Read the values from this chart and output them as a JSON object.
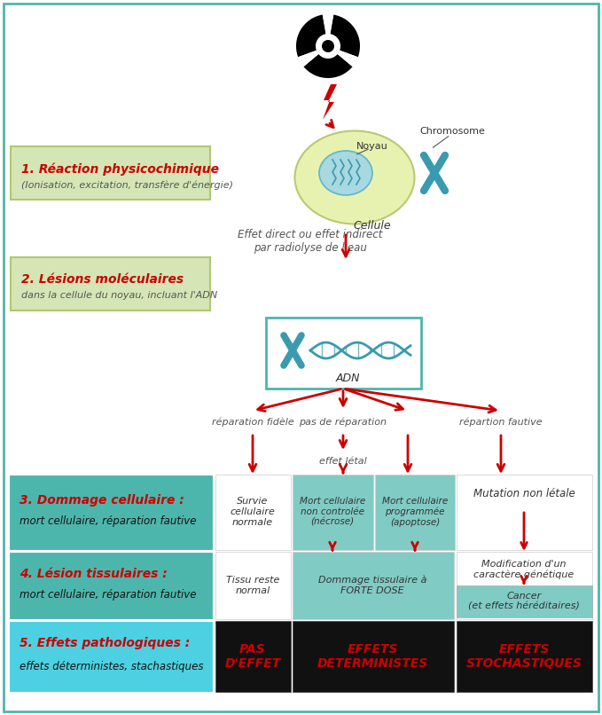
{
  "bg_color": "#ffffff",
  "border_color": "#4db6ac",
  "red": "#cc0000",
  "green_bg": "#d4e6b5",
  "teal_bg": "#4db6ac",
  "light_teal": "#80cbc4",
  "cyan_bg": "#4dd0e1",
  "black_bg": "#111111",
  "red_text": "#cc0000",
  "step1_title": "1. Réaction physicochimique",
  "step1_sub": "(Ionisation, excitation, transfère d'énergie)",
  "step2_title": "2. Lésions moléculaires",
  "step2_sub": "dans la cellule du noyau, incluant l'ADN",
  "step3_title": "3. Dommage cellulaire :",
  "step3_sub": "mort cellulaire, réparation fautive",
  "step4_title": "4. Lésion tissulaires :",
  "step4_sub": "mort cellulaire, réparation fautive",
  "step5_title": "5. Effets pathologiques :",
  "step5_sub": "effets déterministes, stachastiques",
  "noyau_label": "Noyau",
  "chrom_label": "Chromosome",
  "cell_label": "Cellule",
  "adn_label": "ADN",
  "effect_text": "Effet direct ou effet indirect\npar radiolyse de l'eau",
  "repair_fidele": "réparation fidèle",
  "pas_reparation": "pas de réparation",
  "repartion_fautive": "répartion fautive",
  "effet_letal": "effet létal",
  "survie_title": "Survie\ncellulaire\nnormale",
  "mort_nc_title": "Mort cellulaire\nnon controlée\n(nécrose)",
  "mort_prog_title": "Mort cellulaire\nprogrammée\n(apoptose)",
  "mutation_title": "Mutation non létale",
  "tissu_normal": "Tissu reste\nnormal",
  "dommage_tissu": "Dommage tissulaire à\nFORTE DOSE",
  "modif_gen": "Modification d'un\ncaractère génétique",
  "cancer": "Cancer\n(et effets héréditaires)",
  "pas_effet": "PAS\nD'EFFET",
  "effets_det": "EFFETS\nDETERMINISTES",
  "effets_sto": "EFFETS\nSTOCHASTIQUES"
}
